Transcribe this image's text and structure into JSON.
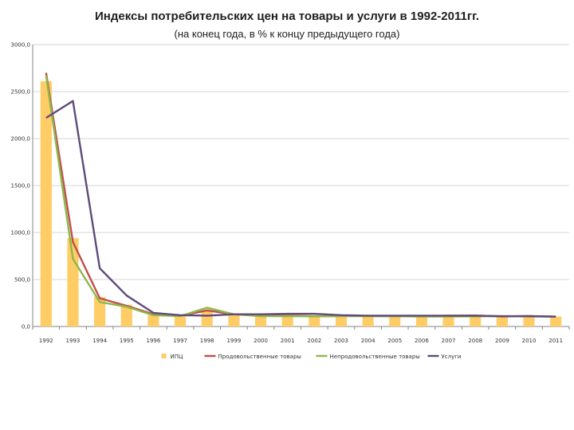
{
  "chart_data": {
    "type": "bar",
    "title": "Индексы потребительских цен на товары и услуги в 1992-2011гг.",
    "subtitle": "(на конец года, в % к концу предыдущего года)",
    "categories": [
      "1992",
      "1993",
      "1994",
      "1995",
      "1996",
      "1997",
      "1998",
      "1999",
      "2000",
      "2001",
      "2002",
      "2003",
      "2004",
      "2005",
      "2006",
      "2007",
      "2008",
      "2009",
      "2010",
      "2011"
    ],
    "ylim": [
      0,
      3000
    ],
    "y_ticks": [
      "0,0",
      "500,0",
      "1000,0",
      "1500,0",
      "2000,0",
      "2500,0",
      "3000,0"
    ],
    "grid": true,
    "legend_position": "bottom",
    "series": [
      {
        "name": "ИПЦ",
        "type": "bar",
        "color": "#ffcc66",
        "values": [
          2609,
          940,
          315,
          231,
          122,
          111,
          185,
          137,
          120,
          119,
          115,
          112,
          112,
          111,
          109,
          112,
          113,
          109,
          109,
          106
        ]
      },
      {
        "name": "Продовольственные товары",
        "type": "line",
        "color": "#c0504d",
        "values": [
          2700,
          900,
          300,
          220,
          130,
          115,
          170,
          130,
          115,
          115,
          110,
          112,
          112,
          110,
          109,
          115,
          117,
          106,
          112,
          104
        ]
      },
      {
        "name": "Непродовольственные товары",
        "type": "line",
        "color": "#8db84a",
        "values": [
          2670,
          720,
          260,
          210,
          120,
          110,
          200,
          130,
          110,
          110,
          108,
          110,
          110,
          108,
          106,
          106,
          108,
          110,
          105,
          105
        ]
      },
      {
        "name": "Услуги",
        "type": "line",
        "color": "#604a7b",
        "values": [
          2220,
          2400,
          620,
          330,
          145,
          120,
          115,
          130,
          130,
          135,
          135,
          120,
          115,
          115,
          115,
          115,
          115,
          110,
          110,
          105
        ]
      }
    ]
  }
}
